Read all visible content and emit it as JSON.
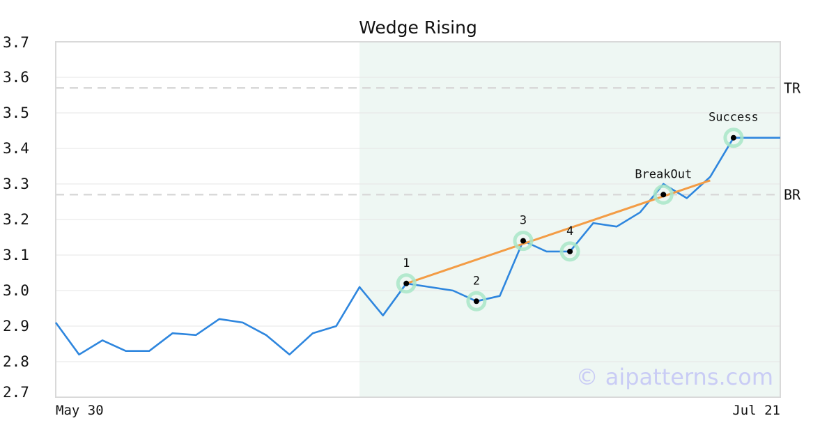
{
  "chart_data": {
    "type": "line",
    "title": "Wedge Rising",
    "x_tick_labels": [
      "May 30",
      "Jul 21"
    ],
    "ylim": [
      2.7,
      3.7
    ],
    "yticks": [
      "2.7",
      "2.8",
      "2.9",
      "3.0",
      "3.1",
      "3.2",
      "3.3",
      "3.4",
      "3.5",
      "3.6",
      "3.7"
    ],
    "grid": true,
    "series": [
      {
        "color": "#2e86de",
        "values": [
          2.91,
          2.82,
          2.86,
          2.83,
          2.83,
          2.88,
          2.875,
          2.92,
          2.91,
          2.875,
          2.82,
          2.88,
          2.9,
          3.01,
          2.93,
          3.02,
          3.01,
          3.0,
          2.97,
          2.985,
          3.14,
          3.11,
          3.11,
          3.19,
          3.18,
          3.22,
          3.3,
          3.26,
          3.32,
          3.43,
          3.43,
          3.43
        ]
      }
    ],
    "highlight_region": {
      "from_index": 13,
      "to_index": 31,
      "color": "#eef7f3"
    },
    "trendline": {
      "from_index": 15,
      "from_value": 3.02,
      "to_index": 28,
      "to_value": 3.31,
      "color": "#f39c45"
    },
    "levels": [
      {
        "label": "TR",
        "value": 3.57
      },
      {
        "label": "BR",
        "value": 3.27
      }
    ],
    "markers": [
      {
        "label": "1",
        "index": 15,
        "value": 3.02
      },
      {
        "label": "2",
        "index": 18,
        "value": 2.97
      },
      {
        "label": "3",
        "index": 20,
        "value": 3.14
      },
      {
        "label": "4",
        "index": 22,
        "value": 3.11
      },
      {
        "label": "BreakOut",
        "index": 26,
        "value": 3.27
      },
      {
        "label": "Success",
        "index": 29,
        "value": 3.43
      }
    ],
    "watermark": "© aipatterns.com"
  }
}
